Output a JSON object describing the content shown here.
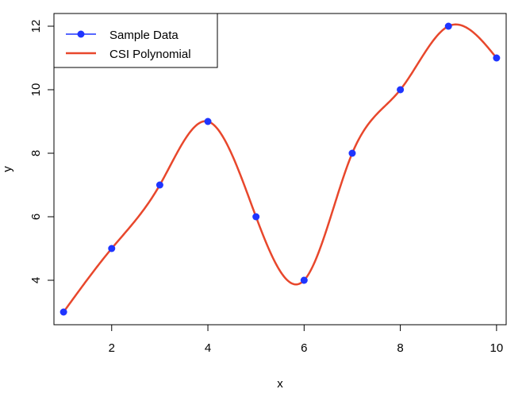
{
  "chart_data": {
    "type": "line",
    "title": "",
    "xlabel": "x",
    "ylabel": "y",
    "xlim": [
      0.8,
      10.2
    ],
    "ylim": [
      2.6,
      12.4
    ],
    "x_ticks": [
      2,
      4,
      6,
      8,
      10
    ],
    "y_ticks": [
      4,
      6,
      8,
      10,
      12
    ],
    "grid": false,
    "legend_position": "top-left",
    "series": [
      {
        "name": "Sample Data",
        "kind": "points",
        "color": "#1f35ff",
        "x": [
          1,
          2,
          3,
          4,
          5,
          6,
          7,
          8,
          9,
          10
        ],
        "y": [
          3,
          5,
          7,
          9,
          6,
          4,
          8,
          10,
          12,
          11
        ]
      },
      {
        "name": "CSI Polynomial",
        "kind": "spline",
        "color": "#e8472c",
        "x": [
          1,
          2,
          3,
          4,
          5,
          6,
          7,
          8,
          9,
          10
        ],
        "y": [
          3,
          5,
          7,
          9,
          6,
          4,
          8,
          10,
          12,
          11
        ]
      }
    ]
  }
}
